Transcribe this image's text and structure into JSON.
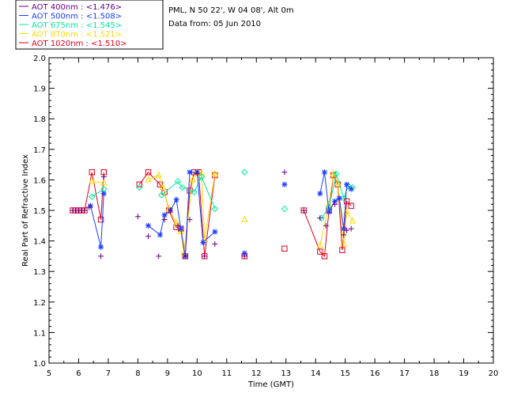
{
  "header": {
    "location": "PML, N 50 22', W 04 08', Alt 0m",
    "date_line": "Data from: 05 Jun 2010"
  },
  "chart_data": {
    "type": "scatter",
    "title": "",
    "xlabel": "Time (GMT)",
    "ylabel": "Real Part of Refractive Index",
    "xlim": [
      5,
      20
    ],
    "ylim": [
      1.0,
      2.0
    ],
    "x_ticks": [
      "5",
      "6",
      "7",
      "8",
      "9",
      "10",
      "11",
      "12",
      "13",
      "14",
      "15",
      "16",
      "17",
      "18",
      "19",
      "20"
    ],
    "y_ticks": [
      "1.0",
      "1.1",
      "1.2",
      "1.3",
      "1.4",
      "1.5",
      "1.6",
      "1.7",
      "1.8",
      "1.9",
      "2.0"
    ],
    "grid": false,
    "legend_position": "top-left outside",
    "series": [
      {
        "name": "AOT  400nm : <1.476>",
        "color": "#66008b",
        "marker": "plus",
        "line": false,
        "points": [
          [
            5.8,
            1.5
          ],
          [
            5.9,
            1.5
          ],
          [
            6.0,
            1.5
          ],
          [
            6.1,
            1.5
          ],
          [
            6.2,
            1.5
          ],
          [
            6.35,
            1.51
          ],
          [
            6.75,
            1.35
          ],
          [
            6.85,
            1.61
          ],
          [
            8.0,
            1.48
          ],
          [
            8.35,
            1.415
          ],
          [
            8.7,
            1.35
          ],
          [
            8.9,
            1.47
          ],
          [
            9.1,
            1.5
          ],
          [
            9.35,
            1.45
          ],
          [
            9.6,
            1.35
          ],
          [
            9.75,
            1.47
          ],
          [
            10.0,
            1.62
          ],
          [
            10.25,
            1.35
          ],
          [
            10.6,
            1.39
          ],
          [
            11.6,
            1.35
          ],
          [
            12.95,
            1.625
          ],
          [
            13.6,
            1.5
          ],
          [
            14.15,
            1.475
          ],
          [
            14.35,
            1.45
          ],
          [
            14.65,
            1.52
          ],
          [
            14.95,
            1.42
          ],
          [
            15.05,
            1.435
          ],
          [
            15.2,
            1.44
          ]
        ]
      },
      {
        "name": "AOT  500nm : <1.508>",
        "color": "#1a3cff",
        "marker": "asterisk",
        "line": true,
        "points": [
          [
            6.4,
            1.515
          ],
          [
            6.75,
            1.38
          ],
          [
            6.85,
            1.555
          ],
          [
            8.35,
            1.45
          ],
          [
            8.75,
            1.42
          ],
          [
            8.9,
            1.485
          ],
          [
            9.1,
            1.5
          ],
          [
            9.3,
            1.535
          ],
          [
            9.45,
            1.44
          ],
          [
            9.6,
            1.35
          ],
          [
            9.75,
            1.625
          ],
          [
            10.0,
            1.625
          ],
          [
            10.2,
            1.395
          ],
          [
            10.6,
            1.43
          ],
          [
            11.6,
            1.36
          ],
          [
            12.95,
            1.585
          ],
          [
            14.15,
            1.555
          ],
          [
            14.3,
            1.625
          ],
          [
            14.45,
            1.495
          ],
          [
            14.65,
            1.53
          ],
          [
            14.8,
            1.54
          ],
          [
            14.95,
            1.44
          ],
          [
            15.05,
            1.585
          ],
          [
            15.2,
            1.57
          ]
        ]
      },
      {
        "name": "AOT  675nm : <1.545>",
        "color": "#00e8a0",
        "marker": "diamond",
        "line": true,
        "points": [
          [
            6.45,
            1.545
          ],
          [
            6.85,
            1.57
          ],
          [
            8.05,
            1.575
          ],
          [
            8.8,
            1.55
          ],
          [
            9.35,
            1.595
          ],
          [
            9.5,
            1.575
          ],
          [
            9.9,
            1.56
          ],
          [
            10.15,
            1.61
          ],
          [
            10.6,
            1.505
          ],
          [
            11.6,
            1.625
          ],
          [
            12.95,
            1.505
          ],
          [
            14.2,
            1.475
          ],
          [
            14.45,
            1.51
          ],
          [
            14.7,
            1.62
          ],
          [
            14.95,
            1.54
          ],
          [
            15.1,
            1.58
          ],
          [
            15.25,
            1.575
          ]
        ]
      },
      {
        "name": "AOT  870nm : <1.521>",
        "color": "#ffd700",
        "marker": "triangle",
        "line": true,
        "points": [
          [
            6.45,
            1.595
          ],
          [
            6.85,
            1.59
          ],
          [
            8.35,
            1.6
          ],
          [
            8.7,
            1.615
          ],
          [
            8.85,
            1.575
          ],
          [
            9.05,
            1.505
          ],
          [
            9.3,
            1.46
          ],
          [
            9.45,
            1.43
          ],
          [
            9.55,
            1.36
          ],
          [
            9.85,
            1.6
          ],
          [
            10.0,
            1.625
          ],
          [
            10.15,
            1.62
          ],
          [
            10.25,
            1.405
          ],
          [
            10.6,
            1.62
          ],
          [
            11.6,
            1.47
          ],
          [
            14.15,
            1.385
          ],
          [
            14.45,
            1.52
          ],
          [
            14.6,
            1.62
          ],
          [
            14.75,
            1.59
          ],
          [
            14.95,
            1.39
          ],
          [
            15.05,
            1.495
          ],
          [
            15.25,
            1.465
          ]
        ]
      },
      {
        "name": "AOT 1020nm : <1.510>",
        "color": "#e0001a",
        "marker": "square",
        "line": true,
        "points": [
          [
            5.8,
            1.5
          ],
          [
            5.9,
            1.5
          ],
          [
            6.0,
            1.5
          ],
          [
            6.1,
            1.5
          ],
          [
            6.2,
            1.5
          ],
          [
            6.45,
            1.625
          ],
          [
            6.75,
            1.47
          ],
          [
            6.85,
            1.625
          ],
          [
            8.05,
            1.585
          ],
          [
            8.35,
            1.625
          ],
          [
            8.75,
            1.585
          ],
          [
            8.9,
            1.56
          ],
          [
            9.05,
            1.5
          ],
          [
            9.3,
            1.445
          ],
          [
            9.45,
            1.44
          ],
          [
            9.6,
            1.35
          ],
          [
            9.75,
            1.565
          ],
          [
            9.9,
            1.625
          ],
          [
            10.05,
            1.625
          ],
          [
            10.25,
            1.35
          ],
          [
            10.6,
            1.615
          ],
          [
            11.6,
            1.35
          ],
          [
            12.95,
            1.375
          ],
          [
            13.6,
            1.5
          ],
          [
            14.15,
            1.365
          ],
          [
            14.3,
            1.35
          ],
          [
            14.45,
            1.5
          ],
          [
            14.6,
            1.615
          ],
          [
            14.75,
            1.585
          ],
          [
            14.9,
            1.37
          ],
          [
            15.05,
            1.53
          ],
          [
            15.2,
            1.515
          ]
        ]
      }
    ]
  }
}
